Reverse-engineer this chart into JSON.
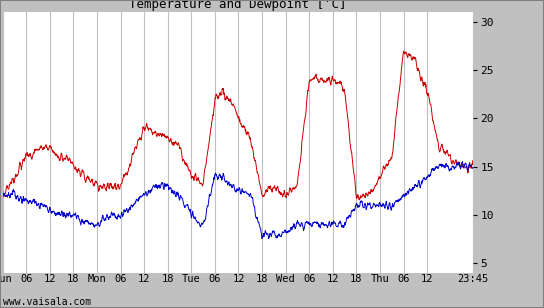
{
  "title": "Temperature and Dewpoint [ʼC]",
  "x_tick_labels": [
    "Sun",
    "06",
    "12",
    "18",
    "Mon",
    "06",
    "12",
    "18",
    "Tue",
    "06",
    "12",
    "18",
    "Wed",
    "06",
    "12",
    "18",
    "Thu",
    "06",
    "12",
    "23:45"
  ],
  "x_tick_positions": [
    0,
    6,
    12,
    18,
    24,
    30,
    36,
    42,
    48,
    54,
    60,
    66,
    72,
    78,
    84,
    90,
    96,
    102,
    108,
    119.75
  ],
  "ylim": [
    4,
    31
  ],
  "yticks": [
    5,
    10,
    15,
    20,
    25,
    30
  ],
  "total_hours": 119.75,
  "plot_bg": "#ffffff",
  "fig_bg": "#c0c0c0",
  "grid_color": "#c0c0c0",
  "temp_color": "#cc0000",
  "dew_color": "#0000cc",
  "watermark": "www.vaisala.com",
  "key_t": [
    0,
    3,
    6,
    10,
    12,
    14,
    16,
    18,
    20,
    24,
    27,
    30,
    33,
    36,
    39,
    42,
    45,
    48,
    51,
    54,
    56,
    58,
    60,
    63,
    66,
    68,
    72,
    75,
    78,
    81,
    84,
    87,
    90,
    93,
    96,
    99,
    102,
    105,
    108,
    111,
    114,
    117,
    119.75
  ],
  "key_T": [
    12,
    14,
    16,
    17,
    17,
    16,
    16,
    15,
    14,
    13,
    13,
    13,
    16,
    19,
    18.5,
    18,
    17,
    14,
    13,
    22,
    22.5,
    22,
    20,
    18,
    12,
    13,
    12,
    13,
    24,
    24,
    24,
    23,
    12,
    12,
    14,
    16,
    27,
    26,
    23,
    17,
    16,
    15,
    15
  ],
  "key_D": [
    12,
    12,
    11.5,
    11,
    10.5,
    10,
    10,
    10,
    9.5,
    9,
    10,
    10,
    11,
    12,
    13,
    13,
    12,
    10,
    9,
    14,
    14,
    13,
    12.5,
    12,
    8,
    8,
    8,
    9,
    9,
    9,
    9,
    9,
    11,
    11,
    11,
    11,
    12,
    13,
    14,
    15,
    15,
    15,
    15
  ]
}
